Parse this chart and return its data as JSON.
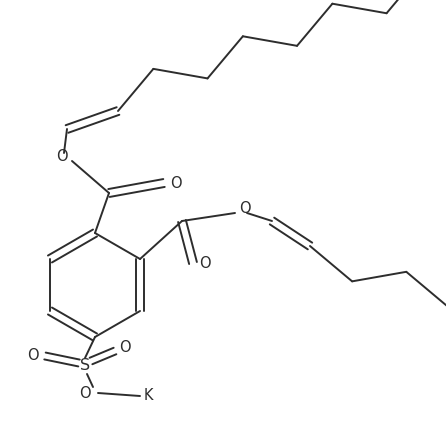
{
  "background": "#ffffff",
  "line_color": "#2d2d2d",
  "line_width": 1.4,
  "font_size": 10.5,
  "figsize": [
    4.46,
    4.21
  ],
  "dpi": 100,
  "xlim": [
    0,
    446
  ],
  "ylim": [
    0,
    421
  ]
}
